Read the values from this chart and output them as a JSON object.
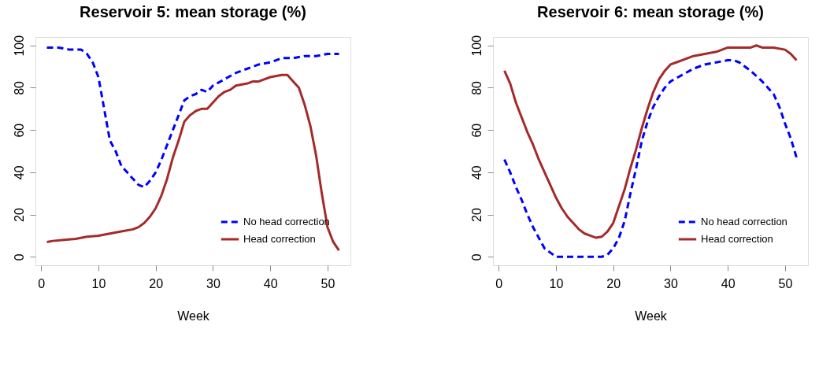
{
  "chart_data": [
    {
      "type": "line",
      "title": "Reservoir 5: mean storage (%)",
      "xlabel": "Week",
      "xlim": [
        -1,
        54
      ],
      "xticks": [
        0,
        10,
        20,
        30,
        40,
        50
      ],
      "ylim": [
        -4,
        104
      ],
      "yticks": [
        0,
        20,
        40,
        60,
        80,
        100
      ],
      "grid": false,
      "legend": "bottom right",
      "marker": "none",
      "series": [
        {
          "name": "No head correction",
          "color": "#0000ff",
          "line_style": "dashed",
          "x": [
            1,
            3,
            5,
            7,
            8,
            9,
            10,
            11,
            12,
            13,
            14,
            15,
            16,
            17,
            18,
            19,
            20,
            21,
            22,
            23,
            24,
            25,
            26,
            27,
            28,
            29,
            30,
            32,
            34,
            36,
            38,
            40,
            42,
            44,
            46,
            48,
            50,
            52
          ],
          "values": [
            99,
            99,
            98,
            98,
            96,
            92,
            85,
            70,
            55,
            50,
            43,
            40,
            37,
            34,
            33,
            36,
            40,
            46,
            53,
            60,
            67,
            74,
            76,
            77,
            79,
            78,
            81,
            84,
            87,
            89,
            91,
            92,
            94,
            94,
            95,
            95,
            96,
            96
          ]
        },
        {
          "name": "Head correction",
          "color": "#a52a2a",
          "line_style": "solid",
          "x": [
            1,
            2,
            4,
            6,
            8,
            10,
            12,
            14,
            16,
            17,
            18,
            19,
            20,
            21,
            22,
            23,
            24,
            25,
            26,
            27,
            28,
            29,
            30,
            31,
            32,
            33,
            34,
            36,
            37,
            38,
            40,
            42,
            43,
            44,
            45,
            46,
            47,
            48,
            49,
            50,
            51,
            52
          ],
          "values": [
            7,
            7.5,
            8,
            8.5,
            9.5,
            10,
            11,
            12,
            13,
            14,
            16,
            19,
            23,
            29,
            37,
            47,
            55,
            64,
            67,
            69,
            70,
            70,
            73,
            76,
            78,
            79,
            81,
            82,
            83,
            83,
            85,
            86,
            86,
            83,
            80,
            72,
            62,
            48,
            30,
            14,
            7,
            3
          ]
        }
      ]
    },
    {
      "type": "line",
      "title": "Reservoir 6: mean storage (%)",
      "xlabel": "Week",
      "xlim": [
        -1,
        54
      ],
      "xticks": [
        0,
        10,
        20,
        30,
        40,
        50
      ],
      "ylim": [
        -4,
        104
      ],
      "yticks": [
        0,
        20,
        40,
        60,
        80,
        100
      ],
      "grid": false,
      "legend": "bottom right",
      "marker": "none",
      "series": [
        {
          "name": "No head correction",
          "color": "#0000ff",
          "line_style": "dashed",
          "x": [
            1,
            2,
            3,
            4,
            5,
            6,
            7,
            8,
            9,
            10,
            11,
            12,
            14,
            16,
            17,
            18,
            19,
            20,
            21,
            22,
            23,
            24,
            25,
            26,
            27,
            28,
            29,
            30,
            32,
            34,
            36,
            38,
            40,
            41,
            42,
            44,
            46,
            48,
            49,
            50,
            51,
            52
          ],
          "values": [
            46,
            40,
            33,
            27,
            20,
            14,
            9,
            4,
            2,
            0,
            0,
            0,
            0,
            0,
            0,
            0,
            1,
            4,
            9,
            17,
            30,
            42,
            55,
            64,
            71,
            76,
            80,
            83,
            86,
            89,
            91,
            92,
            93,
            93,
            92,
            88,
            83,
            77,
            71,
            63,
            56,
            47
          ]
        },
        {
          "name": "Head correction",
          "color": "#a52a2a",
          "line_style": "solid",
          "x": [
            1,
            2,
            3,
            4,
            5,
            6,
            7,
            8,
            9,
            10,
            11,
            12,
            13,
            14,
            15,
            16,
            17,
            18,
            19,
            20,
            21,
            22,
            23,
            24,
            25,
            26,
            27,
            28,
            29,
            30,
            31,
            32,
            34,
            36,
            38,
            39,
            40,
            42,
            44,
            45,
            46,
            48,
            50,
            51,
            52
          ],
          "values": [
            88,
            82,
            73,
            66,
            59,
            53,
            46,
            40,
            34,
            28,
            23,
            19,
            16,
            13,
            11,
            10,
            9,
            9.5,
            12,
            16,
            24,
            32,
            42,
            51,
            61,
            70,
            78,
            84,
            88,
            91,
            92,
            93,
            95,
            96,
            97,
            98,
            99,
            99,
            99,
            100,
            99,
            99,
            98,
            96,
            93
          ]
        }
      ]
    }
  ]
}
